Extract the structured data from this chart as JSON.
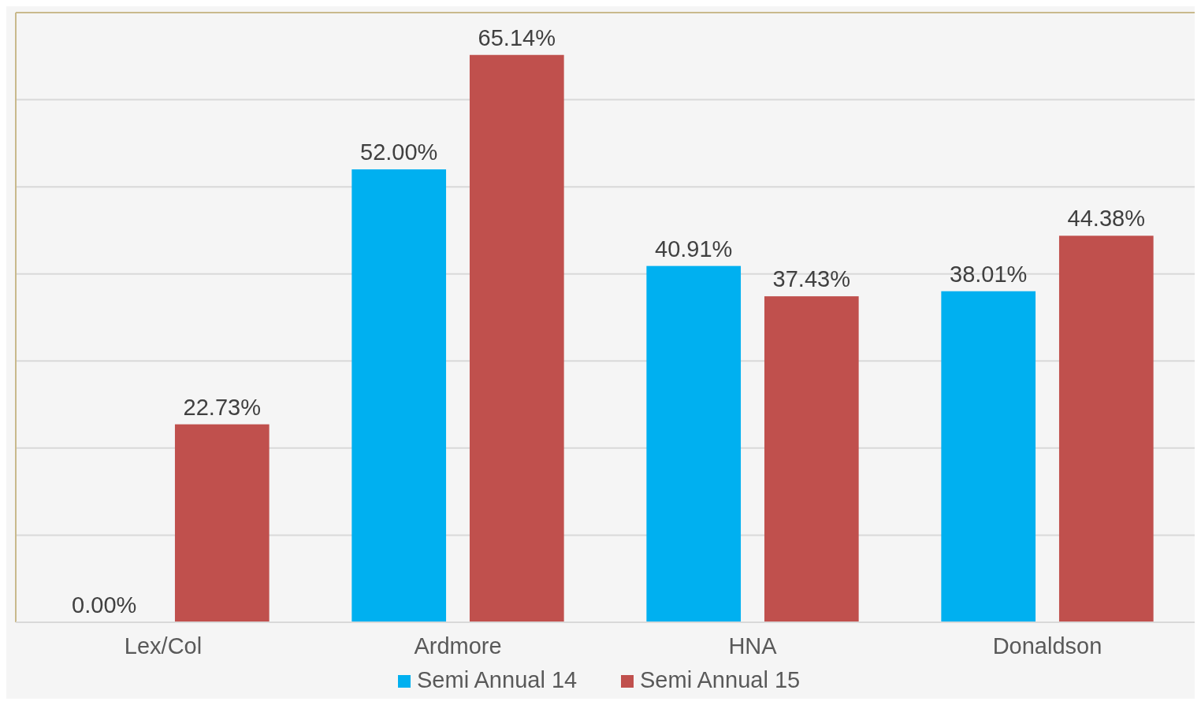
{
  "chart_data": {
    "type": "bar",
    "categories": [
      "Lex/Col",
      "Ardmore",
      "HNA",
      "Donaldson"
    ],
    "series": [
      {
        "name": "Semi Annual 14",
        "color": "#00b0f0",
        "values": [
          0,
          52.0,
          40.91,
          38.01
        ],
        "value_labels": [
          "0.00%",
          "52.00%",
          "40.91%",
          "38.01%"
        ]
      },
      {
        "name": "Semi Annual 15",
        "color": "#c0504d",
        "values": [
          22.73,
          65.14,
          37.43,
          44.38
        ],
        "value_labels": [
          "22.73%",
          "65.14%",
          "37.43%",
          "44.38%"
        ]
      }
    ],
    "ylim": [
      0,
      70
    ],
    "yticks": [
      {
        "value": 0,
        "label": null
      },
      {
        "value": 10,
        "label": null
      },
      {
        "value": 20,
        "label": null
      },
      {
        "value": 30,
        "label": null
      },
      {
        "value": 40,
        "label": null
      },
      {
        "value": 50,
        "label": null
      },
      {
        "value": 60,
        "label": null
      },
      {
        "value": 70,
        "label": null
      }
    ],
    "grid": "y",
    "legend": "bottom"
  }
}
